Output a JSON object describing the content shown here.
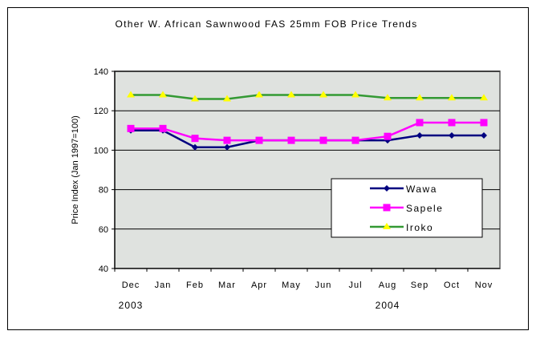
{
  "chart_data": {
    "type": "line",
    "title": "Other W. African Sawnwood FAS 25mm FOB Price Trends",
    "xlabel": "",
    "ylabel": "Price Index (Jan 1997=100)",
    "categories": [
      "Dec",
      "Jan",
      "Feb",
      "Mar",
      "Apr",
      "May",
      "Jun",
      "Jul",
      "Aug",
      "Sep",
      "Oct",
      "Nov"
    ],
    "year_labels": [
      {
        "label": "2003",
        "at": "Dec"
      },
      {
        "label": "2004",
        "at": "Aug"
      }
    ],
    "ylim": [
      40,
      140
    ],
    "yticks": [
      40,
      60,
      80,
      100,
      120,
      140
    ],
    "grid": true,
    "legend_position": "lower-right",
    "series": [
      {
        "name": "Wawa",
        "color": "#000080",
        "marker": "diamond",
        "values": [
          110,
          110,
          101.5,
          101.5,
          105,
          105,
          105,
          105,
          105,
          107.5,
          107.5,
          107.5
        ]
      },
      {
        "name": "Sapele",
        "color": "#ff00ff",
        "marker": "square",
        "values": [
          111,
          111,
          106,
          105,
          105,
          105,
          105,
          105,
          107,
          114,
          114,
          114
        ]
      },
      {
        "name": "Iroko",
        "color": "#339933",
        "marker": "triangle",
        "marker_color": "#ffff00",
        "values": [
          128,
          128,
          126,
          126,
          128,
          128,
          128,
          128,
          126.5,
          126.5,
          126.5,
          126.5
        ]
      }
    ]
  }
}
